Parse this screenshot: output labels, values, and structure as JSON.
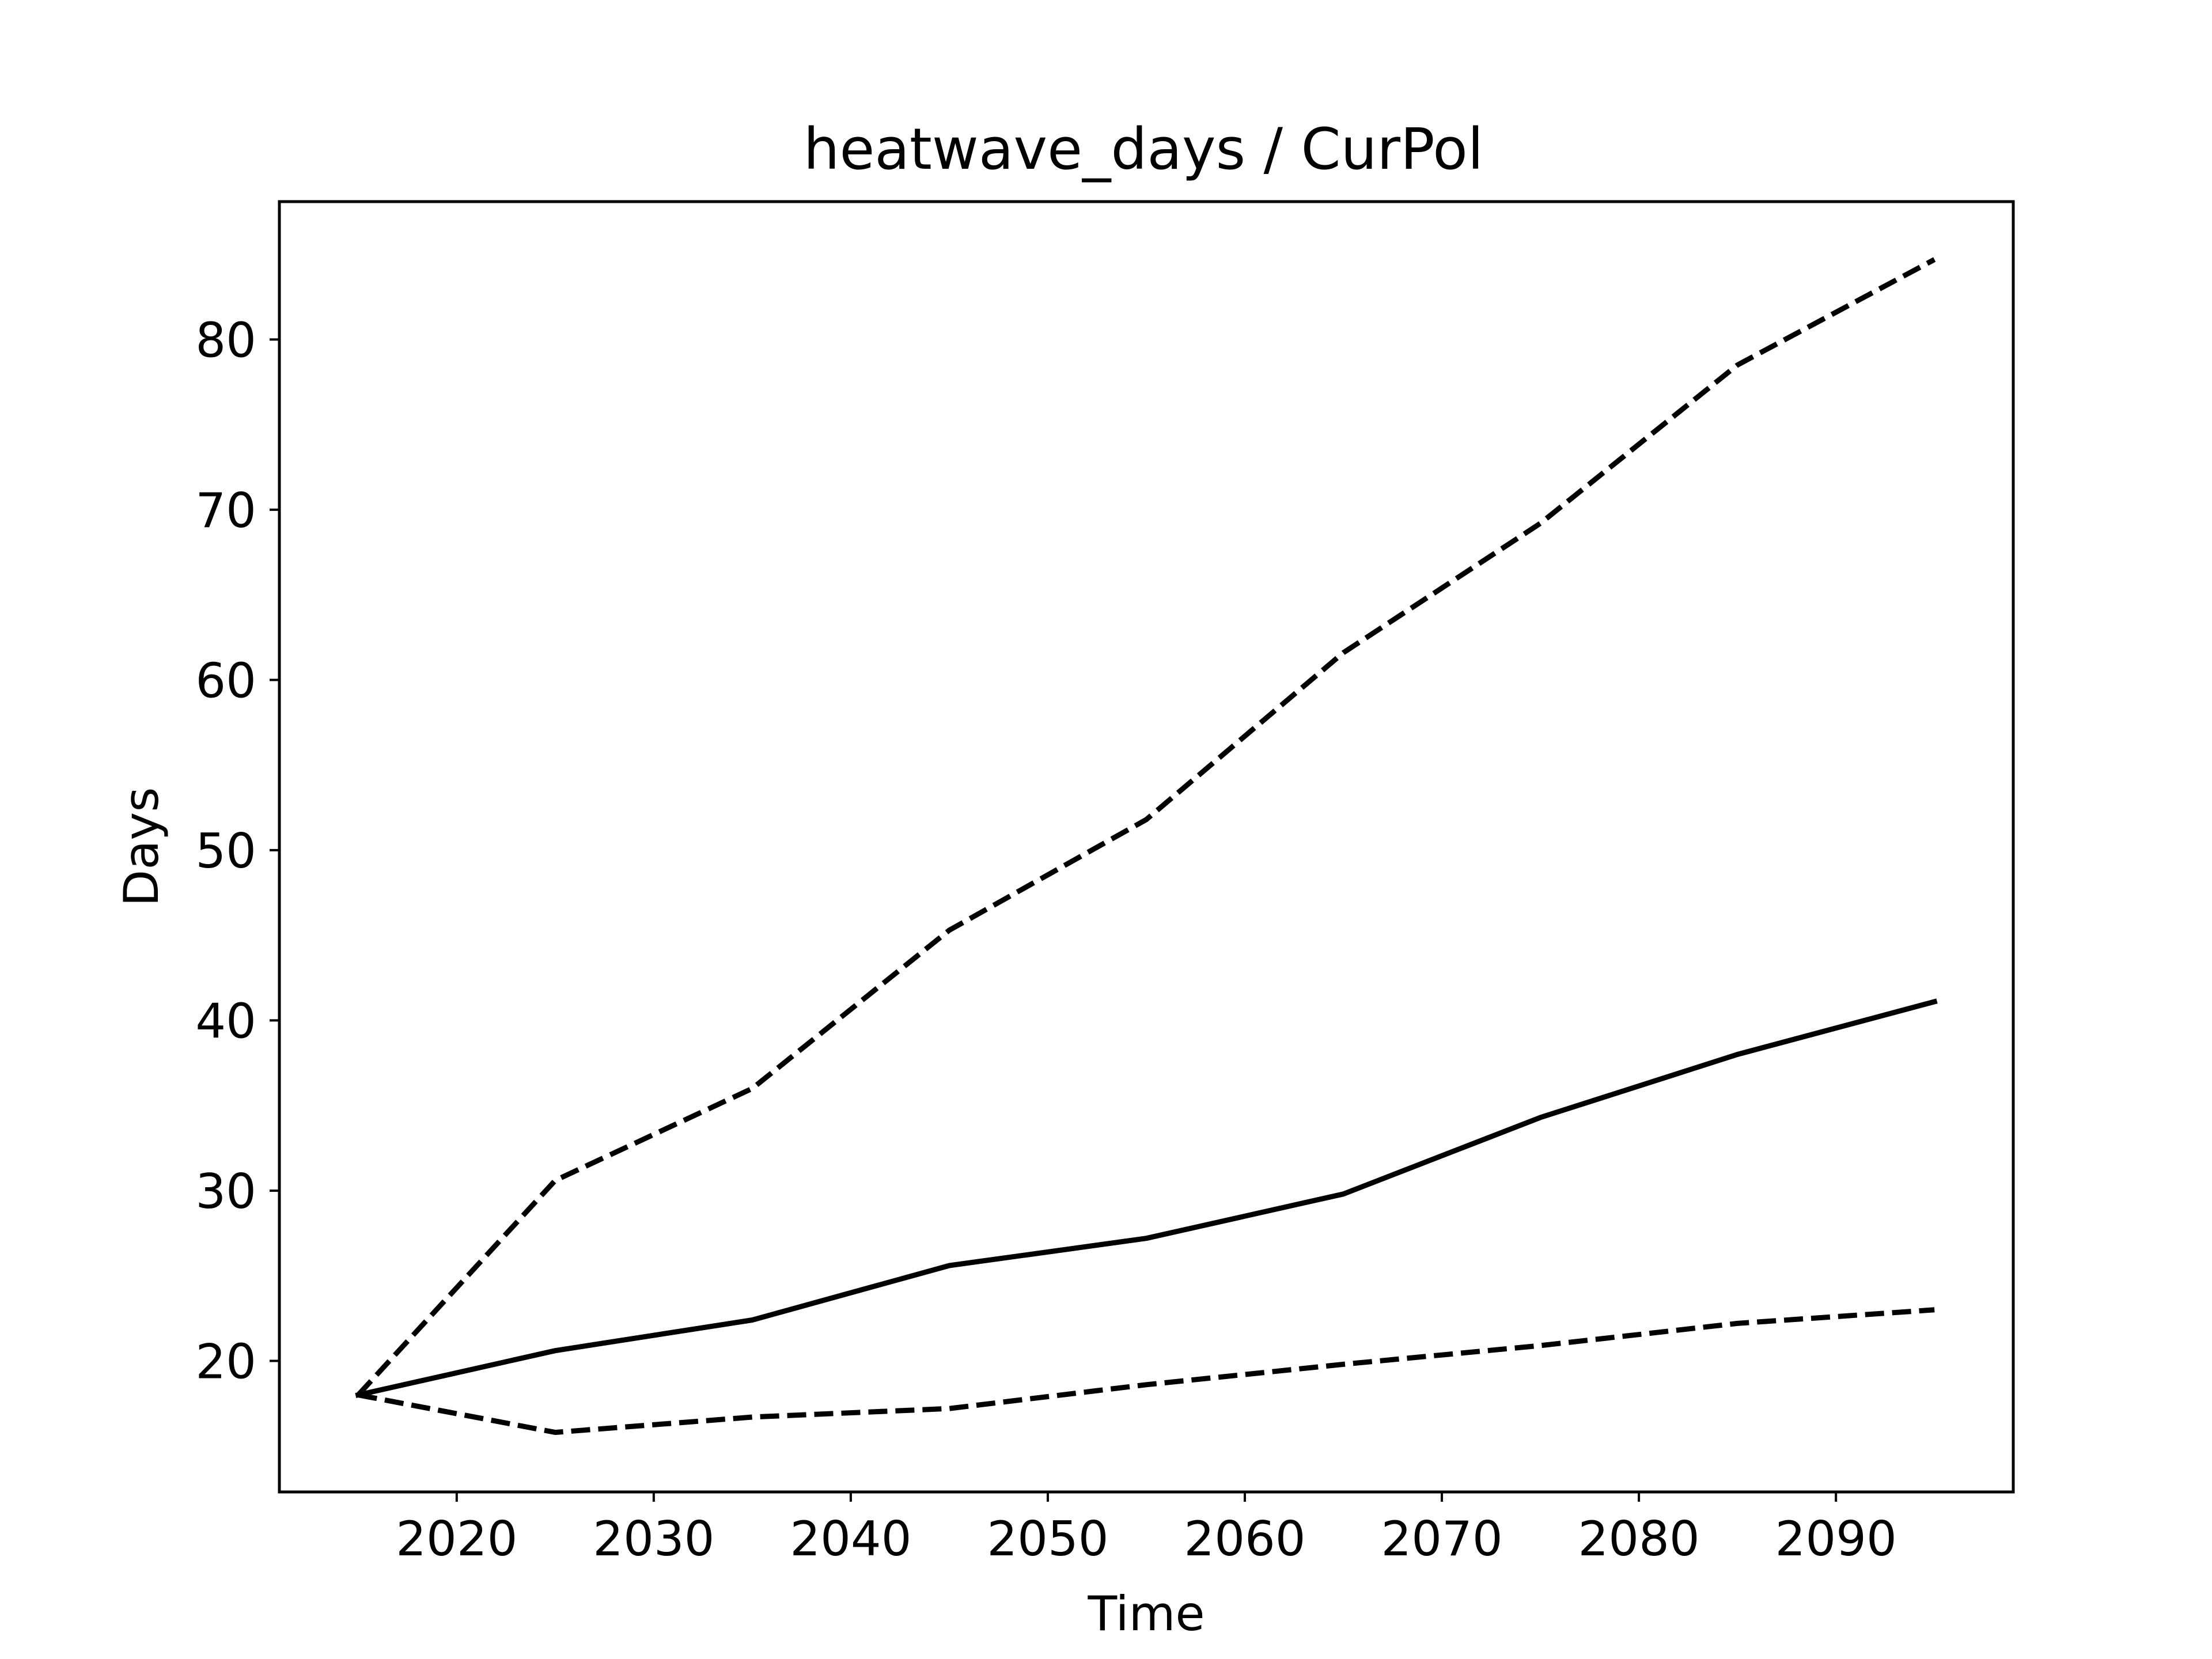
{
  "chart_data": {
    "type": "line",
    "title": "heatwave_days / CurPol",
    "xlabel": "Time",
    "ylabel": "Days",
    "xlim": [
      2011,
      2099
    ],
    "ylim": [
      12.3,
      88.1
    ],
    "x_ticks": [
      2020,
      2030,
      2040,
      2050,
      2060,
      2070,
      2080,
      2090
    ],
    "y_ticks": [
      20,
      30,
      40,
      50,
      60,
      70,
      80
    ],
    "grid": false,
    "x": [
      2015,
      2025,
      2035,
      2045,
      2055,
      2065,
      2075,
      2085,
      2095
    ],
    "series": [
      {
        "values": [
          18.0,
          30.6,
          36.0,
          45.3,
          51.8,
          61.6,
          69.2,
          78.5,
          84.7
        ],
        "style": "dashed",
        "color": "#000000"
      },
      {
        "values": [
          18.0,
          20.6,
          22.4,
          25.6,
          27.2,
          29.8,
          34.3,
          38.0,
          41.1
        ],
        "style": "solid",
        "color": "#000000"
      },
      {
        "values": [
          18.0,
          15.8,
          16.7,
          17.2,
          18.6,
          19.8,
          20.9,
          22.2,
          23.0
        ],
        "style": "dashed",
        "color": "#000000"
      }
    ]
  }
}
